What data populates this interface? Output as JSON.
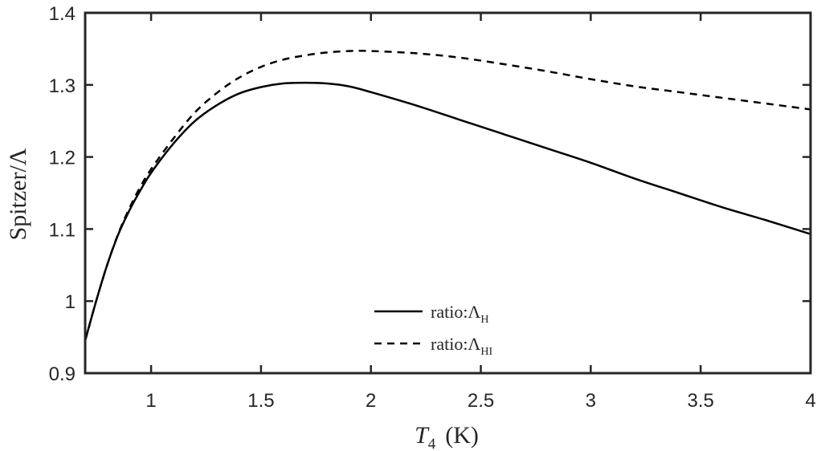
{
  "chart_data": {
    "type": "line",
    "title": "",
    "xlabel": {
      "symbol": "T",
      "subscript": "4",
      "unit": "(K)"
    },
    "ylabel": "Spitzer/Λ",
    "xlim": [
      0.7,
      4
    ],
    "ylim": [
      0.9,
      1.4
    ],
    "xticks": [
      1,
      1.5,
      2,
      2.5,
      3,
      3.5,
      4
    ],
    "xtick_labels": [
      "1",
      "1.5",
      "2",
      "2.5",
      "3",
      "3.5",
      "4"
    ],
    "yticks": [
      0.9,
      1.0,
      1.1,
      1.2,
      1.3,
      1.4
    ],
    "ytick_labels": [
      "0.9",
      "1",
      "1.1",
      "1.2",
      "1.3",
      "1.4"
    ],
    "grid": false,
    "legend_position": "bottom-center",
    "series": [
      {
        "name": "ratio:ΛH",
        "legend_text": "ratio:Λ",
        "legend_sub": "H",
        "style": "solid",
        "color": "#000000",
        "x": [
          0.7,
          0.75,
          0.8,
          0.85,
          0.9,
          0.95,
          1.0,
          1.1,
          1.2,
          1.3,
          1.4,
          1.5,
          1.6,
          1.7,
          1.8,
          1.9,
          2.0,
          2.2,
          2.4,
          2.6,
          2.8,
          3.0,
          3.2,
          3.4,
          3.6,
          3.8,
          4.0
        ],
        "y": [
          0.945,
          1.0,
          1.05,
          1.092,
          1.125,
          1.153,
          1.178,
          1.218,
          1.25,
          1.272,
          1.288,
          1.297,
          1.302,
          1.303,
          1.302,
          1.298,
          1.29,
          1.272,
          1.252,
          1.232,
          1.212,
          1.192,
          1.17,
          1.15,
          1.13,
          1.112,
          1.093
        ]
      },
      {
        "name": "ratio:ΛHI",
        "legend_text": "ratio:Λ",
        "legend_sub": "HI",
        "style": "dashed",
        "color": "#000000",
        "x": [
          0.7,
          0.75,
          0.8,
          0.85,
          0.9,
          0.95,
          1.0,
          1.1,
          1.2,
          1.3,
          1.4,
          1.5,
          1.6,
          1.7,
          1.8,
          1.9,
          2.0,
          2.2,
          2.4,
          2.6,
          2.8,
          3.0,
          3.2,
          3.4,
          3.6,
          3.8,
          4.0
        ],
        "y": [
          0.945,
          1.0,
          1.05,
          1.093,
          1.128,
          1.158,
          1.183,
          1.225,
          1.262,
          1.289,
          1.31,
          1.325,
          1.335,
          1.341,
          1.345,
          1.347,
          1.347,
          1.344,
          1.338,
          1.329,
          1.319,
          1.308,
          1.298,
          1.29,
          1.282,
          1.274,
          1.266
        ]
      }
    ]
  }
}
